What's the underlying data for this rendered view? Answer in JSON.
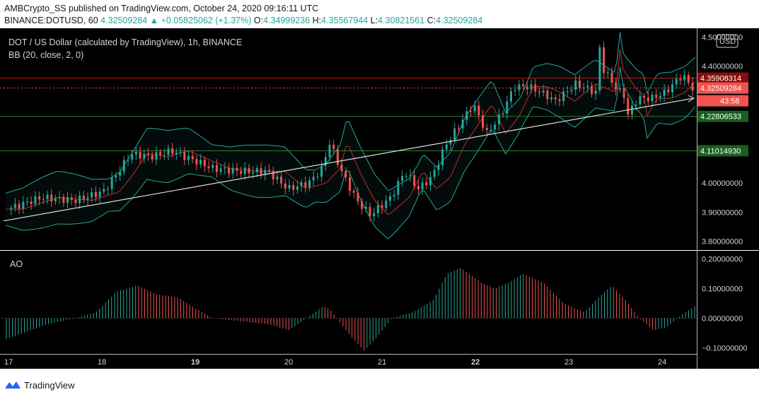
{
  "header": {
    "line1": "AMBCrypto_SS published on TradingView.com, October 24, 2020 09:16:11 UTC",
    "symbol": "BINANCE:DOTUSD, 60",
    "last": "4.32509284",
    "change": "▲ +0.05825062 (+1.37%)",
    "o_label": "O:",
    "o_value": "4.34999236",
    "h_label": "H:",
    "h_value": "4.35567944",
    "l_label": "L:",
    "l_value": "4.30821561",
    "c_label": "C:",
    "c_value": "4.32509284"
  },
  "chart_data": [
    {
      "type": "candlestick",
      "title": "DOT / US Dollar (calculated by TradingView), 1h, BINANCE",
      "indicator": "BB (20, close, 2, 0)",
      "currency_button": "USD",
      "y_ticks": [
        "4.50000000",
        "4.40000000",
        "4.00000000",
        "3.90000000",
        "3.80000000"
      ],
      "ylim": [
        3.77,
        4.53
      ],
      "x_ticks": [
        "17",
        "18",
        "19",
        "20",
        "21",
        "22",
        "23",
        "24"
      ],
      "price_labels": [
        {
          "value": 4.35908314,
          "text": "4.35908314",
          "color": "#880e0e"
        },
        {
          "value": 4.32509284,
          "text": "4.32509284",
          "color": "#ef5350"
        },
        {
          "text": "43:58",
          "color": "#ef5350"
        },
        {
          "value": 4.22806533,
          "text": "4.22806533",
          "color": "#1b5e20"
        },
        {
          "value": 4.1101493,
          "text": "4.11014930",
          "color": "#1b5e20"
        }
      ],
      "horizontal_lines": [
        {
          "value": 4.35908314,
          "color": "#b71c1c",
          "style": "solid"
        },
        {
          "value": 4.32509284,
          "color": "#ef5350",
          "style": "dotted"
        },
        {
          "value": 4.22806533,
          "color": "#2e7d32",
          "style": "solid"
        },
        {
          "value": 4.1101493,
          "color": "#2e7d32",
          "style": "solid"
        }
      ],
      "trendline": {
        "start": 3.87,
        "end": 4.29,
        "color": "#e0e0e0"
      },
      "colors": {
        "up": "#26a69a",
        "down": "#ef5350",
        "bb_band": "#26a69a",
        "bb_basis": "#c62828"
      },
      "close_path": [
        [
          0,
          3.91
        ],
        [
          0.05,
          3.95
        ],
        [
          0.1,
          3.94
        ],
        [
          0.14,
          3.97
        ],
        [
          0.16,
          4.03
        ],
        [
          0.18,
          4.1
        ],
        [
          0.21,
          4.09
        ],
        [
          0.24,
          4.11
        ],
        [
          0.27,
          4.08
        ],
        [
          0.3,
          4.05
        ],
        [
          0.34,
          4.04
        ],
        [
          0.38,
          4.04
        ],
        [
          0.41,
          3.98
        ],
        [
          0.44,
          4.0
        ],
        [
          0.46,
          4.05
        ],
        [
          0.47,
          4.14
        ],
        [
          0.49,
          4.03
        ],
        [
          0.51,
          3.94
        ],
        [
          0.53,
          3.89
        ],
        [
          0.56,
          3.95
        ],
        [
          0.58,
          4.04
        ],
        [
          0.6,
          3.98
        ],
        [
          0.62,
          4.02
        ],
        [
          0.64,
          4.13
        ],
        [
          0.66,
          4.2
        ],
        [
          0.68,
          4.27
        ],
        [
          0.7,
          4.17
        ],
        [
          0.72,
          4.23
        ],
        [
          0.74,
          4.33
        ],
        [
          0.76,
          4.33
        ],
        [
          0.78,
          4.31
        ],
        [
          0.8,
          4.28
        ],
        [
          0.83,
          4.34
        ],
        [
          0.86,
          4.31
        ],
        [
          0.865,
          4.47
        ],
        [
          0.87,
          4.39
        ],
        [
          0.89,
          4.32
        ],
        [
          0.9,
          4.3
        ],
        [
          0.905,
          4.23
        ],
        [
          0.92,
          4.29
        ],
        [
          0.94,
          4.29
        ],
        [
          0.96,
          4.31
        ],
        [
          0.985,
          4.37
        ],
        [
          1.0,
          4.325
        ]
      ]
    },
    {
      "type": "bar",
      "title": "AO",
      "y_ticks": [
        "0.20000000",
        "0.10000000",
        "0.00000000",
        "−0.10000000"
      ],
      "ylim": [
        -0.12,
        0.22
      ],
      "colors": {
        "up": "#26a69a",
        "down": "#ef5350"
      },
      "wave": [
        [
          0,
          -0.07
        ],
        [
          0.06,
          -0.02
        ],
        [
          0.1,
          0.0
        ],
        [
          0.13,
          0.02
        ],
        [
          0.16,
          0.09
        ],
        [
          0.19,
          0.11
        ],
        [
          0.22,
          0.08
        ],
        [
          0.25,
          0.07
        ],
        [
          0.27,
          0.04
        ],
        [
          0.3,
          0.0
        ],
        [
          0.34,
          -0.01
        ],
        [
          0.38,
          -0.02
        ],
        [
          0.41,
          -0.04
        ],
        [
          0.43,
          -0.01
        ],
        [
          0.46,
          0.04
        ],
        [
          0.47,
          0.03
        ],
        [
          0.5,
          -0.06
        ],
        [
          0.52,
          -0.11
        ],
        [
          0.54,
          -0.06
        ],
        [
          0.56,
          0.0
        ],
        [
          0.59,
          0.02
        ],
        [
          0.62,
          0.06
        ],
        [
          0.64,
          0.15
        ],
        [
          0.66,
          0.17
        ],
        [
          0.69,
          0.12
        ],
        [
          0.71,
          0.1
        ],
        [
          0.73,
          0.12
        ],
        [
          0.75,
          0.15
        ],
        [
          0.78,
          0.12
        ],
        [
          0.81,
          0.05
        ],
        [
          0.84,
          0.02
        ],
        [
          0.86,
          0.07
        ],
        [
          0.88,
          0.11
        ],
        [
          0.9,
          0.06
        ],
        [
          0.92,
          0.0
        ],
        [
          0.94,
          -0.04
        ],
        [
          0.96,
          -0.03
        ],
        [
          0.98,
          0.01
        ],
        [
          1.0,
          0.04
        ]
      ]
    }
  ],
  "branding": {
    "tradingview_text": "TradingView"
  }
}
